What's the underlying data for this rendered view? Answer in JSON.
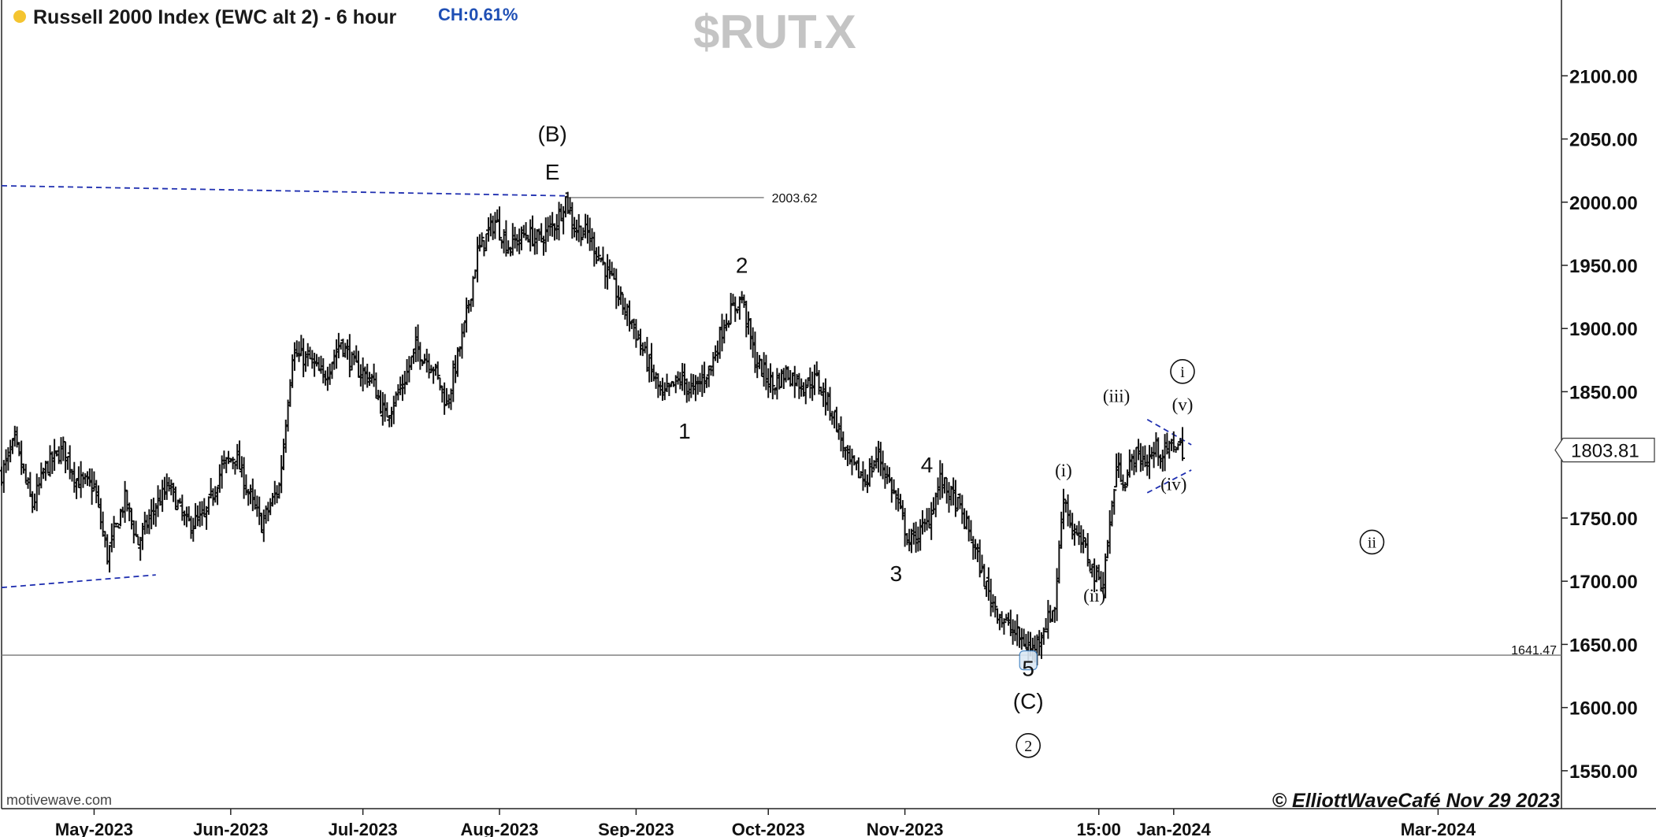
{
  "header": {
    "title": "Russell 2000 Index (EWC alt 2) - 6 hour",
    "change": "CH:0.61%",
    "symbol": "$RUT.X"
  },
  "footer": {
    "source": "motivewave.com",
    "copyright": "© ElliottWaveCafé Nov 29 2023"
  },
  "colors": {
    "candle": "#111111",
    "trendline": "#1f2fb0",
    "level_line": "#777777",
    "marker": "#3d7fc0",
    "change": "#1f4fb5",
    "symbol_watermark": "#c4c4c4"
  },
  "chart_data": {
    "type": "ohlc-bar",
    "ylim": [
      1520,
      2160
    ],
    "y_ticks": [
      1550,
      1600,
      1650,
      1700,
      1750,
      1800,
      1850,
      1900,
      1950,
      2000,
      2050,
      2100
    ],
    "y_tick_labels": [
      "1550.00",
      "1600.00",
      "1650.00",
      "1700.00",
      "1750.00",
      "1800.00",
      "1850.00",
      "1900.00",
      "1950.00",
      "2000.00",
      "2050.00",
      "2100.00"
    ],
    "x_range": [
      "2023-04-10",
      "2024-03-29"
    ],
    "x_ticks": [
      {
        "date": "2023-05-01",
        "label": "May-2023"
      },
      {
        "date": "2023-06-01",
        "label": "Jun-2023"
      },
      {
        "date": "2023-07-01",
        "label": "Jul-2023"
      },
      {
        "date": "2023-08-01",
        "label": "Aug-2023"
      },
      {
        "date": "2023-09-01",
        "label": "Sep-2023"
      },
      {
        "date": "2023-10-01",
        "label": "Oct-2023"
      },
      {
        "date": "2023-11-01",
        "label": "Nov-2023"
      },
      {
        "date": "2023-12-15",
        "label": "15:00"
      },
      {
        "date": "2024-01-01",
        "label": "Jan-2024"
      },
      {
        "date": "2024-03-01",
        "label": "Mar-2024"
      }
    ],
    "last_price": {
      "value": 1803.81,
      "label": "1803.81"
    },
    "price_path": [
      [
        "2023-04-10",
        1785
      ],
      [
        "2023-04-13",
        1810
      ],
      [
        "2023-04-17",
        1760
      ],
      [
        "2023-04-20",
        1790
      ],
      [
        "2023-04-24",
        1805
      ],
      [
        "2023-04-27",
        1780
      ],
      [
        "2023-05-01",
        1775
      ],
      [
        "2023-05-04",
        1720
      ],
      [
        "2023-05-08",
        1765
      ],
      [
        "2023-05-11",
        1730
      ],
      [
        "2023-05-15",
        1760
      ],
      [
        "2023-05-18",
        1775
      ],
      [
        "2023-05-22",
        1745
      ],
      [
        "2023-05-26",
        1750
      ],
      [
        "2023-05-30",
        1790
      ],
      [
        "2023-06-02",
        1800
      ],
      [
        "2023-06-05",
        1770
      ],
      [
        "2023-06-08",
        1745
      ],
      [
        "2023-06-12",
        1775
      ],
      [
        "2023-06-15",
        1880
      ],
      [
        "2023-06-19",
        1875
      ],
      [
        "2023-06-22",
        1860
      ],
      [
        "2023-06-26",
        1890
      ],
      [
        "2023-06-29",
        1870
      ],
      [
        "2023-07-03",
        1860
      ],
      [
        "2023-07-06",
        1830
      ],
      [
        "2023-07-10",
        1855
      ],
      [
        "2023-07-13",
        1885
      ],
      [
        "2023-07-17",
        1870
      ],
      [
        "2023-07-20",
        1840
      ],
      [
        "2023-07-24",
        1900
      ],
      [
        "2023-07-27",
        1960
      ],
      [
        "2023-07-31",
        1985
      ],
      [
        "2023-08-03",
        1965
      ],
      [
        "2023-08-07",
        1975
      ],
      [
        "2023-08-10",
        1970
      ],
      [
        "2023-08-14",
        1985
      ],
      [
        "2023-08-16",
        2003
      ],
      [
        "2023-08-18",
        1980
      ],
      [
        "2023-08-21",
        1975
      ],
      [
        "2023-08-24",
        1955
      ],
      [
        "2023-08-28",
        1925
      ],
      [
        "2023-08-31",
        1905
      ],
      [
        "2023-09-04",
        1870
      ],
      [
        "2023-09-07",
        1845
      ],
      [
        "2023-09-11",
        1860
      ],
      [
        "2023-09-14",
        1850
      ],
      [
        "2023-09-18",
        1870
      ],
      [
        "2023-09-21",
        1905
      ],
      [
        "2023-09-25",
        1925
      ],
      [
        "2023-09-28",
        1875
      ],
      [
        "2023-10-02",
        1855
      ],
      [
        "2023-10-05",
        1865
      ],
      [
        "2023-10-09",
        1855
      ],
      [
        "2023-10-12",
        1860
      ],
      [
        "2023-10-16",
        1830
      ],
      [
        "2023-10-19",
        1795
      ],
      [
        "2023-10-23",
        1780
      ],
      [
        "2023-10-26",
        1800
      ],
      [
        "2023-10-30",
        1765
      ],
      [
        "2023-11-02",
        1730
      ],
      [
        "2023-11-06",
        1745
      ],
      [
        "2023-11-09",
        1780
      ],
      [
        "2023-11-13",
        1760
      ],
      [
        "2023-11-16",
        1735
      ],
      [
        "2023-11-20",
        1690
      ],
      [
        "2023-11-23",
        1670
      ],
      [
        "2023-11-27",
        1655
      ],
      [
        "2023-11-30",
        1645
      ],
      [
        "2023-12-02",
        1660
      ],
      [
        "2023-12-05",
        1680
      ],
      [
        "2023-12-07",
        1770
      ],
      [
        "2023-12-09",
        1740
      ],
      [
        "2023-12-12",
        1725
      ],
      [
        "2023-12-14",
        1705
      ],
      [
        "2023-12-16",
        1700
      ],
      [
        "2023-12-19",
        1790
      ],
      [
        "2023-12-21",
        1780
      ],
      [
        "2023-12-23",
        1800
      ],
      [
        "2023-12-26",
        1795
      ],
      [
        "2023-12-28",
        1805
      ],
      [
        "2023-12-30",
        1800
      ],
      [
        "2024-01-01",
        1810
      ],
      [
        "2024-01-03",
        1804
      ]
    ],
    "levels": [
      {
        "value": 2003.62,
        "label": "2003.62",
        "from": "2023-08-16",
        "to": "2023-09-30"
      },
      {
        "value": 1641.47,
        "label": "1641.47",
        "from": "2023-04-10",
        "to": "2024-03-29"
      }
    ],
    "trendlines": [
      {
        "from": [
          "2023-04-10",
          2013
        ],
        "to": [
          "2023-08-16",
          2005
        ]
      },
      {
        "from": [
          "2023-04-10",
          1695
        ],
        "to": [
          "2023-05-15",
          1705
        ]
      },
      {
        "from": [
          "2023-12-26",
          1828
        ],
        "to": [
          "2024-01-05",
          1808
        ]
      },
      {
        "from": [
          "2023-12-26",
          1770
        ],
        "to": [
          "2024-01-05",
          1788
        ]
      }
    ],
    "wave_labels": [
      {
        "text": "(B)",
        "date": "2023-08-13",
        "price": 2048,
        "style": "sans"
      },
      {
        "text": "E",
        "date": "2023-08-13",
        "price": 2018,
        "style": "sans"
      },
      {
        "text": "1",
        "date": "2023-09-12",
        "price": 1813,
        "style": "sans"
      },
      {
        "text": "2",
        "date": "2023-09-25",
        "price": 1944,
        "style": "sans"
      },
      {
        "text": "3",
        "date": "2023-10-30",
        "price": 1700,
        "style": "sans"
      },
      {
        "text": "4",
        "date": "2023-11-06",
        "price": 1786,
        "style": "sans"
      },
      {
        "text": "5",
        "date": "2023-11-29",
        "price": 1625,
        "style": "sans"
      },
      {
        "text": "(C)",
        "date": "2023-11-29",
        "price": 1599,
        "style": "sans"
      },
      {
        "text": "2",
        "date": "2023-11-29",
        "price": 1570,
        "style": "circled"
      },
      {
        "text": "(i)",
        "date": "2023-12-07",
        "price": 1783,
        "style": "serif"
      },
      {
        "text": "(ii)",
        "date": "2023-12-14",
        "price": 1684,
        "style": "serif"
      },
      {
        "text": "(iii)",
        "date": "2023-12-19",
        "price": 1842,
        "style": "serif"
      },
      {
        "text": "(iv)",
        "date": "2024-01-01",
        "price": 1772,
        "style": "serif"
      },
      {
        "text": "(v)",
        "date": "2024-01-03",
        "price": 1835,
        "style": "serif"
      },
      {
        "text": "i",
        "date": "2024-01-03",
        "price": 1866,
        "style": "circled"
      },
      {
        "text": "ii",
        "date": "2024-02-15",
        "price": 1731,
        "style": "circled"
      }
    ],
    "low_marker": {
      "date": "2023-11-29",
      "price": 1638
    }
  }
}
